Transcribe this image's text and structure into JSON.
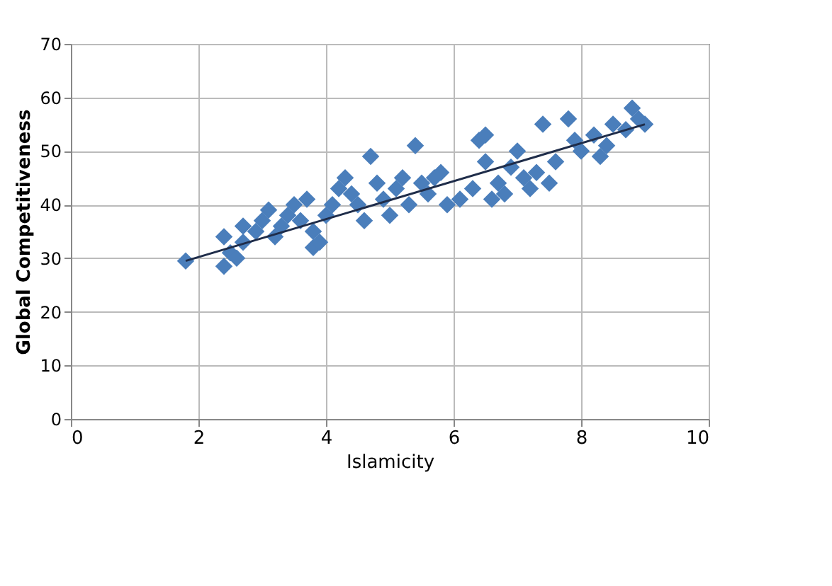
{
  "chart_data": {
    "type": "scatter",
    "xlabel": "Islamicity",
    "ylabel": "Global Competitiveness",
    "xlim": [
      0,
      10
    ],
    "ylim": [
      0,
      70
    ],
    "xticks": [
      0,
      2,
      4,
      6,
      8,
      10
    ],
    "yticks": [
      0,
      10,
      20,
      30,
      40,
      50,
      60,
      70
    ],
    "grid": true,
    "marker": "diamond",
    "series": [
      {
        "color": "#4a7ebb",
        "x": [
          1.8,
          2.4,
          2.4,
          2.5,
          2.6,
          2.7,
          2.7,
          2.9,
          3.0,
          3.1,
          3.2,
          3.3,
          3.4,
          3.5,
          3.6,
          3.7,
          3.8,
          3.8,
          3.9,
          4.0,
          4.1,
          4.2,
          4.3,
          4.4,
          4.5,
          4.6,
          4.7,
          4.8,
          4.9,
          5.0,
          5.1,
          5.2,
          5.3,
          5.4,
          5.5,
          5.6,
          5.7,
          5.8,
          5.9,
          6.1,
          6.3,
          6.4,
          6.5,
          6.5,
          6.6,
          6.7,
          6.8,
          6.9,
          7.0,
          7.1,
          7.2,
          7.3,
          7.4,
          7.5,
          7.6,
          7.8,
          7.9,
          8.0,
          8.2,
          8.3,
          8.4,
          8.5,
          8.7,
          8.8,
          8.9,
          9.0
        ],
        "values": [
          29.5,
          28.5,
          34,
          31,
          30,
          33,
          36,
          35,
          37,
          39,
          34,
          36,
          38,
          40,
          37,
          41,
          35,
          32,
          33,
          38,
          40,
          43,
          45,
          42,
          40,
          37,
          49,
          44,
          41,
          38,
          43,
          45,
          40,
          51,
          44,
          42,
          45,
          46,
          40,
          41,
          43,
          52,
          53,
          48,
          41,
          44,
          42,
          47,
          50,
          45,
          43,
          46,
          55,
          44,
          48,
          56,
          52,
          50,
          53,
          49,
          51,
          55,
          54,
          58,
          56,
          55
        ]
      },
      {
        "type": "line",
        "color": "#1f2d4a",
        "line_style": "solid",
        "marker": "none",
        "x": [
          1.8,
          9.0
        ],
        "values": [
          29.5,
          55
        ]
      }
    ]
  }
}
